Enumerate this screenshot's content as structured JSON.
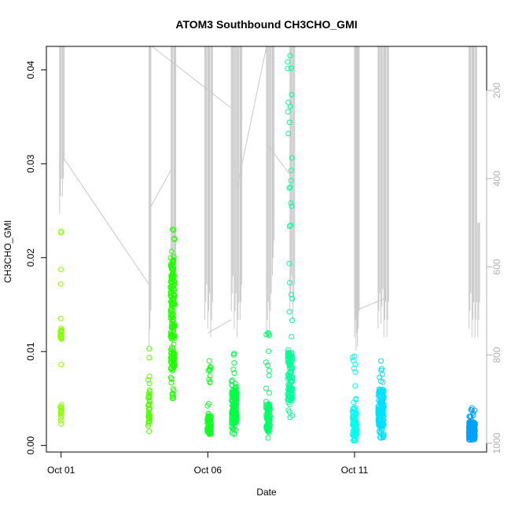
{
  "chart_data": {
    "type": "scatter",
    "title": "ATOM3 Southbound CH3CHO_GMI",
    "xlabel": "Date",
    "ylabel": "CH3CHO_GMI",
    "xlim": [
      0.5,
      15.5
    ],
    "ylim": [
      -0.0007,
      0.0425
    ],
    "x_ticks": [
      {
        "value": 1,
        "label": "Oct 01"
      },
      {
        "value": 6,
        "label": "Oct 06"
      },
      {
        "value": 11,
        "label": "Oct 11"
      }
    ],
    "y_ticks": [
      {
        "value": 0.0,
        "label": "0.00"
      },
      {
        "value": 0.01,
        "label": "0.01"
      },
      {
        "value": 0.02,
        "label": "0.02"
      },
      {
        "value": 0.03,
        "label": "0.03"
      },
      {
        "value": 0.04,
        "label": "0.04"
      }
    ],
    "y2lim": [
      100,
      1020
    ],
    "y2_reversed": true,
    "y2_ticks": [
      {
        "value": 200,
        "label": "200"
      },
      {
        "value": 400,
        "label": "400"
      },
      {
        "value": 600,
        "label": "600"
      },
      {
        "value": 800,
        "label": "800"
      },
      {
        "value": 1000,
        "label": "1000"
      }
    ],
    "marker": "open-circle",
    "grid": false,
    "legend": "none",
    "clusters": [
      {
        "x": 1.0,
        "width": 0.05,
        "y_min": 0.0023,
        "y_max": 0.0228,
        "dense": [
          [
            0.0026,
            0.0048
          ],
          [
            0.0112,
            0.0126
          ]
        ],
        "count": 34,
        "color": "#87FF00"
      },
      {
        "x": 4.0,
        "width": 0.06,
        "y_min": 0.0015,
        "y_max": 0.0103,
        "dense": [
          [
            0.002,
            0.006
          ]
        ],
        "count": 40,
        "color": "#55FF00"
      },
      {
        "x": 4.8,
        "width": 0.14,
        "y_min": 0.005,
        "y_max": 0.023,
        "dense": [
          [
            0.008,
            0.02
          ]
        ],
        "count": 200,
        "color": "#22FF00"
      },
      {
        "x": 6.05,
        "width": 0.14,
        "y_min": 0.0012,
        "y_max": 0.009,
        "dense": [
          [
            0.0014,
            0.0035
          ]
        ],
        "count": 70,
        "color": "#11FF22"
      },
      {
        "x": 6.9,
        "width": 0.18,
        "y_min": 0.0012,
        "y_max": 0.0098,
        "dense": [
          [
            0.002,
            0.006
          ]
        ],
        "count": 130,
        "color": "#00FF44"
      },
      {
        "x": 8.05,
        "width": 0.14,
        "y_min": 0.0008,
        "y_max": 0.012,
        "dense": [
          [
            0.0015,
            0.0045
          ]
        ],
        "count": 90,
        "color": "#00FF6A"
      },
      {
        "x": 8.8,
        "width": 0.16,
        "y_min": 0.003,
        "y_max": 0.0415,
        "dense": [
          [
            0.0045,
            0.01
          ]
        ],
        "count": 130,
        "color": "#00FF99"
      },
      {
        "x": 11.0,
        "width": 0.14,
        "y_min": 0.0005,
        "y_max": 0.0095,
        "dense": [
          [
            0.001,
            0.004
          ]
        ],
        "count": 90,
        "color": "#00FFEE"
      },
      {
        "x": 11.9,
        "width": 0.2,
        "y_min": 0.0008,
        "y_max": 0.009,
        "dense": [
          [
            0.002,
            0.006
          ]
        ],
        "count": 150,
        "color": "#00E0FF"
      },
      {
        "x": 15.0,
        "width": 0.22,
        "y_min": 0.0006,
        "y_max": 0.004,
        "dense": [
          [
            0.0008,
            0.0025
          ]
        ],
        "count": 160,
        "color": "#00A0FF"
      }
    ],
    "pressure_profile": {
      "color": "#c8c8c8",
      "spikes": [
        {
          "x": 0.95,
          "top": 100,
          "bottom": 480
        },
        {
          "x": 1.05,
          "top": 100,
          "bottom": 440
        },
        {
          "x": 4.0,
          "top": 100,
          "bottom": 780
        },
        {
          "x": 4.75,
          "top": 100,
          "bottom": 700
        },
        {
          "x": 4.85,
          "top": 100,
          "bottom": 680
        },
        {
          "x": 5.9,
          "top": 100,
          "bottom": 720
        },
        {
          "x": 6.0,
          "top": 100,
          "bottom": 740
        },
        {
          "x": 6.1,
          "top": 100,
          "bottom": 760
        },
        {
          "x": 6.8,
          "top": 100,
          "bottom": 700
        },
        {
          "x": 6.9,
          "top": 100,
          "bottom": 740
        },
        {
          "x": 7.0,
          "top": 100,
          "bottom": 760
        },
        {
          "x": 7.1,
          "top": 100,
          "bottom": 720
        },
        {
          "x": 8.0,
          "top": 100,
          "bottom": 760
        },
        {
          "x": 8.1,
          "top": 100,
          "bottom": 740
        },
        {
          "x": 8.2,
          "top": 100,
          "bottom": 620
        },
        {
          "x": 8.8,
          "top": 100,
          "bottom": 700
        },
        {
          "x": 8.9,
          "top": 100,
          "bottom": 720
        },
        {
          "x": 11.0,
          "top": 100,
          "bottom": 760
        },
        {
          "x": 11.05,
          "top": 100,
          "bottom": 790
        },
        {
          "x": 11.1,
          "top": 100,
          "bottom": 780
        },
        {
          "x": 11.8,
          "top": 100,
          "bottom": 740
        },
        {
          "x": 11.9,
          "top": 100,
          "bottom": 730
        },
        {
          "x": 12.0,
          "top": 100,
          "bottom": 760
        },
        {
          "x": 12.1,
          "top": 100,
          "bottom": 760
        },
        {
          "x": 14.9,
          "top": 100,
          "bottom": 740
        },
        {
          "x": 15.0,
          "top": 100,
          "bottom": 760
        },
        {
          "x": 15.1,
          "top": 100,
          "bottom": 760
        },
        {
          "x": 15.2,
          "top": 500,
          "bottom": 760
        }
      ],
      "transits": [
        [
          [
            1.05,
            350
          ],
          [
            4.0,
            640
          ]
        ],
        [
          [
            4.0,
            470
          ],
          [
            4.75,
            380
          ]
        ],
        [
          [
            4.1,
            100
          ],
          [
            6.8,
            240
          ]
        ],
        [
          [
            6.0,
            750
          ],
          [
            6.8,
            720
          ]
        ],
        [
          [
            7.0,
            420
          ],
          [
            8.0,
            100
          ]
        ],
        [
          [
            8.0,
            320
          ],
          [
            8.9,
            400
          ]
        ],
        [
          [
            11.0,
            700
          ],
          [
            12.1,
            670
          ]
        ]
      ]
    }
  }
}
